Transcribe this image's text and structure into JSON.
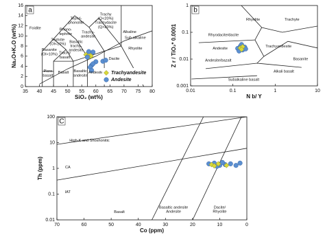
{
  "chart_data": [
    {
      "type": "scatter",
      "panel_label": "a",
      "xlabel": "SiO₂ (wt%)",
      "ylabel": "Na₂O+K₂O (wt%)",
      "xlim": [
        35,
        80
      ],
      "ylim": [
        0,
        16
      ],
      "xticks": [
        35,
        40,
        45,
        50,
        55,
        60,
        65,
        70,
        75,
        80
      ],
      "yticks": [
        0,
        2,
        4,
        6,
        8,
        10,
        12,
        14,
        16
      ],
      "legend": "lower right",
      "series": [
        {
          "name": "Trachyandesite",
          "color": "#d8d83a",
          "marker": "diamond",
          "x": [
            56.5,
            57.2,
            57.8,
            58.3,
            57.5
          ],
          "y": [
            6.3,
            6.1,
            6.4,
            6.0,
            5.8
          ]
        },
        {
          "name": "Andesite",
          "color": "#5b8fd0",
          "marker": "circle",
          "x": [
            59,
            57.5,
            57,
            58.5,
            58,
            60,
            62.5,
            63.5,
            59,
            58.5
          ],
          "y": [
            6.8,
            6.9,
            5.8,
            4.2,
            3.8,
            4.9,
            5.0,
            5.2,
            4.5,
            3.2
          ]
        }
      ],
      "boundaries": [
        {
          "x": [
            41,
            41,
            45
          ],
          "y": [
            0,
            3,
            3
          ]
        },
        {
          "x": [
            45,
            45,
            52,
            57,
            63,
            69,
            77
          ],
          "y": [
            0,
            5,
            5,
            5.9,
            7,
            8,
            0
          ]
        },
        {
          "x": [
            52,
            52
          ],
          "y": [
            0,
            5
          ]
        },
        {
          "x": [
            57,
            57
          ],
          "y": [
            0,
            5.9
          ]
        },
        {
          "x": [
            63,
            63
          ],
          "y": [
            0,
            7
          ]
        },
        {
          "x": [
            41,
            41,
            45,
            48.4,
            52.5
          ],
          "y": [
            3,
            7,
            9.4,
            11.5,
            14
          ]
        },
        {
          "x": [
            45,
            49.4,
            52
          ],
          "y": [
            9.4,
            7.3,
            5
          ]
        },
        {
          "x": [
            48.4,
            53,
            57
          ],
          "y": [
            11.5,
            9.3,
            5.9
          ]
        },
        {
          "x": [
            52.5,
            57.6,
            63
          ],
          "y": [
            14,
            11.7,
            7
          ]
        },
        {
          "x": [
            57.6,
            61,
            69,
            69
          ],
          "y": [
            11.7,
            13.5,
            8,
            16
          ]
        },
        {
          "x": [
            45,
            49.4
          ],
          "y": [
            5,
            7.3
          ]
        },
        {
          "x": [
            40,
            50,
            60,
            70,
            80
          ],
          "y": [
            0.5,
            3.5,
            6,
            9,
            11
          ]
        }
      ],
      "field_labels": [
        {
          "lines": [
            "Foidite"
          ],
          "x": 38.5,
          "y": 11.5
        },
        {
          "lines": [
            "Tephri-",
            "phonolite"
          ],
          "x": 53,
          "y": 13
        },
        {
          "lines": [
            "Phono-",
            "tephrite"
          ],
          "x": 49.3,
          "y": 10.8
        },
        {
          "lines": [
            "Tephrite",
            "(Ol<10%)"
          ],
          "x": 46.5,
          "y": 8.8
        },
        {
          "lines": [
            "Basanite",
            "(Ol>10%)"
          ],
          "x": 43.5,
          "y": 6.8
        },
        {
          "lines": [
            "Trachy",
            "basalt"
          ],
          "x": 49,
          "y": 6.2
        },
        {
          "lines": [
            "Basaltic",
            "trachy-",
            "andesite"
          ],
          "x": 53,
          "y": 8
        },
        {
          "lines": [
            "Trachy-",
            "andesite"
          ],
          "x": 57.3,
          "y": 10.3
        },
        {
          "lines": [
            "Trachy",
            "(Q<20%)",
            "Trachydacite",
            "(Q>20%)"
          ],
          "x": 63.5,
          "y": 13
        },
        {
          "lines": [
            "Alkaline"
          ],
          "x": 72,
          "y": 10.8
        },
        {
          "lines": [
            "Sub-alkaline"
          ],
          "x": 74,
          "y": 9.6
        },
        {
          "lines": [
            "Rhyolite"
          ],
          "x": 74,
          "y": 7.5
        },
        {
          "lines": [
            "Dacite"
          ],
          "x": 66.5,
          "y": 5.5
        },
        {
          "lines": [
            "Picro",
            "basalt"
          ],
          "x": 43,
          "y": 2.6
        },
        {
          "lines": [
            "Basalt"
          ],
          "x": 48.5,
          "y": 2.8
        },
        {
          "lines": [
            "Basaltic",
            "andesite"
          ],
          "x": 54.5,
          "y": 2.6
        },
        {
          "lines": [
            "Andesite"
          ],
          "x": 60,
          "y": 2.8
        }
      ]
    },
    {
      "type": "scatter",
      "panel_label": "b",
      "xlabel": "N b/ Y",
      "ylabel": "Z r / TiO₂* 0.0001",
      "xscale": "log",
      "yscale": "log",
      "xlim": [
        0.01,
        10
      ],
      "ylim": [
        0.001,
        1
      ],
      "xticks": [
        0.01,
        0.1,
        1,
        10
      ],
      "yticks": [
        0.001,
        0.01,
        0.1,
        1
      ],
      "series": [
        {
          "color": "#5b8fd0",
          "marker": "circle",
          "x": [
            0.13,
            0.15,
            0.17,
            0.19,
            0.16,
            0.14,
            0.2
          ],
          "y": [
            0.025,
            0.03,
            0.022,
            0.028,
            0.035,
            0.02,
            0.024
          ]
        },
        {
          "color": "#d8d83a",
          "marker": "diamond",
          "x": [
            0.15,
            0.17,
            0.16
          ],
          "y": [
            0.026,
            0.029,
            0.023
          ]
        }
      ],
      "boundaries": [
        {
          "x": [
            0.158,
            0.48,
            1.48,
            10
          ],
          "y": [
            1.0,
            0.151,
            0.1,
            0.17
          ]
        },
        {
          "x": [
            0.48,
            0.333,
            0.54
          ],
          "y": [
            0.151,
            0.052,
            0.0126
          ]
        },
        {
          "x": [
            0.0156,
            0.333
          ],
          "y": [
            0.041,
            0.052
          ]
        },
        {
          "x": [
            0.0227,
            0.372,
            4.2
          ],
          "y": [
            0.0044,
            0.007,
            0.0049
          ]
        },
        {
          "x": [
            0.54,
            2.0,
            10
          ],
          "y": [
            0.0126,
            0.046,
            0.026
          ]
        },
        {
          "x": [
            0.372,
            0.54
          ],
          "y": [
            0.007,
            0.0126
          ]
        },
        {
          "x": [
            0.0105,
            0.372
          ],
          "y": [
            0.0018,
            0.0024
          ]
        }
      ],
      "field_labels": [
        {
          "lines": [
            "Rhyolite"
          ],
          "x": 0.3,
          "y": 0.3
        },
        {
          "lines": [
            "Trachyte"
          ],
          "x": 2.5,
          "y": 0.3
        },
        {
          "lines": [
            "Rhyodacite/dacite"
          ],
          "x": 0.06,
          "y": 0.08
        },
        {
          "lines": [
            "Trachyandesite"
          ],
          "x": 1.2,
          "y": 0.03
        },
        {
          "lines": [
            "Andesite"
          ],
          "x": 0.05,
          "y": 0.025
        },
        {
          "lines": [
            "Andesite/bazalt"
          ],
          "x": 0.045,
          "y": 0.009
        },
        {
          "lines": [
            "Alkali basalt"
          ],
          "x": 1.6,
          "y": 0.0035
        },
        {
          "lines": [
            "Basanite"
          ],
          "x": 4,
          "y": 0.01
        },
        {
          "lines": [
            "Subalkaline basalt"
          ],
          "x": 0.18,
          "y": 0.0017
        }
      ]
    },
    {
      "type": "scatter",
      "panel_label": "C",
      "xlabel": "Co (ppm)",
      "ylabel": "Th (ppm)",
      "yscale": "log",
      "xlim": [
        70,
        0
      ],
      "ylim": [
        0.01,
        100
      ],
      "xticks": [
        70,
        60,
        50,
        40,
        30,
        20,
        10,
        0
      ],
      "yticks": [
        0.01,
        0.1,
        1,
        10,
        100
      ],
      "series": [
        {
          "color": "#5b8fd0",
          "marker": "circle",
          "x": [
            14,
            12,
            10,
            8,
            6,
            4,
            11,
            9,
            2.5
          ],
          "y": [
            1.5,
            1.6,
            1.3,
            1.4,
            1.5,
            1.3,
            1.2,
            1.7,
            1.6
          ]
        },
        {
          "color": "#d8d83a",
          "marker": "diamond",
          "x": [
            13,
            10.5,
            7.5,
            12
          ],
          "y": [
            1.4,
            1.5,
            1.3,
            1.25
          ]
        }
      ],
      "boundaries": [
        {
          "x": [
            70,
            0
          ],
          "y": [
            8.5,
            100
          ]
        },
        {
          "x": [
            70,
            0
          ],
          "y": [
            0.35,
            6
          ]
        },
        {
          "x": [
            35,
            16
          ],
          "y": [
            0.01,
            100
          ]
        },
        {
          "x": [
            20,
            2
          ],
          "y": [
            0.01,
            100
          ]
        }
      ],
      "field_labels": [
        {
          "lines": [
            "High-K and Shoshonitic"
          ],
          "x": 58,
          "y": 12
        },
        {
          "lines": [
            "CA"
          ],
          "x": 66,
          "y": 1.1
        },
        {
          "lines": [
            "IAT"
          ],
          "x": 66,
          "y": 0.12
        },
        {
          "lines": [
            "Basalt"
          ],
          "x": 47,
          "y": 0.02
        },
        {
          "lines": [
            "Basaltic andesite",
            "Andesite"
          ],
          "x": 27,
          "y": 0.025
        },
        {
          "lines": [
            "Dacite/",
            "Rhyolite"
          ],
          "x": 10,
          "y": 0.025
        }
      ]
    }
  ]
}
